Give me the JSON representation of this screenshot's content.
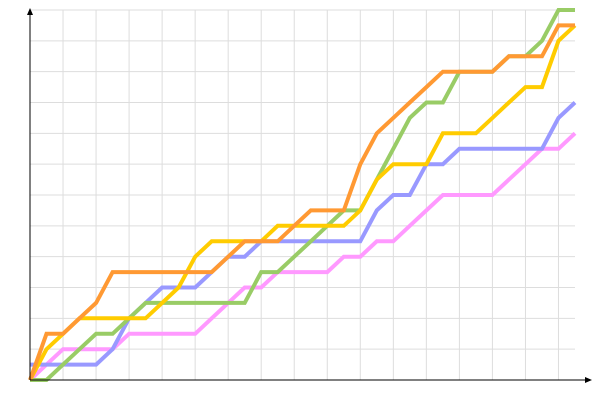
{
  "chart_data": {
    "type": "line",
    "title": "",
    "xlabel": "",
    "ylabel": "",
    "xlim": [
      0,
      33
    ],
    "ylim": [
      0,
      24
    ],
    "grid": true,
    "x": [
      0,
      1,
      2,
      3,
      4,
      5,
      6,
      7,
      8,
      9,
      10,
      11,
      12,
      13,
      14,
      15,
      16,
      17,
      18,
      19,
      20,
      21,
      22,
      23,
      24,
      25,
      26,
      27,
      28,
      29,
      30,
      31,
      32,
      33
    ],
    "series": [
      {
        "color": "#ff99ff",
        "values": [
          0,
          1,
          2,
          2,
          2,
          2,
          3,
          3,
          3,
          3,
          3,
          4,
          5,
          6,
          6,
          7,
          7,
          7,
          7,
          8,
          8,
          9,
          9,
          10,
          11,
          12,
          12,
          12,
          12,
          13,
          14,
          15,
          15,
          16
        ]
      },
      {
        "color": "#9999ff",
        "values": [
          1,
          1,
          1,
          1,
          1,
          2,
          4,
          5,
          6,
          6,
          6,
          7,
          8,
          8,
          9,
          9,
          9,
          9,
          9,
          9,
          9,
          11,
          12,
          12,
          14,
          14,
          15,
          15,
          15,
          15,
          15,
          15,
          17,
          18
        ]
      },
      {
        "color": "#99cc66",
        "values": [
          0,
          0,
          1,
          2,
          3,
          3,
          4,
          5,
          5,
          5,
          5,
          5,
          5,
          5,
          7,
          7,
          8,
          9,
          10,
          11,
          11,
          13,
          15,
          17,
          18,
          18,
          20,
          20,
          20,
          21,
          21,
          22,
          24,
          24
        ]
      },
      {
        "color": "#ffcc00",
        "values": [
          0,
          2,
          3,
          4,
          4,
          4,
          4,
          4,
          5,
          6,
          8,
          9,
          9,
          9,
          9,
          10,
          10,
          10,
          10,
          10,
          11,
          13,
          14,
          14,
          14,
          16,
          16,
          16,
          17,
          18,
          19,
          19,
          22,
          23
        ]
      },
      {
        "color": "#ff9933",
        "values": [
          0,
          3,
          3,
          4,
          5,
          7,
          7,
          7,
          7,
          7,
          7,
          7,
          8,
          9,
          9,
          9,
          10,
          11,
          11,
          11,
          14,
          16,
          17,
          18,
          19,
          20,
          20,
          20,
          20,
          21,
          21,
          21,
          23,
          23
        ]
      }
    ]
  }
}
